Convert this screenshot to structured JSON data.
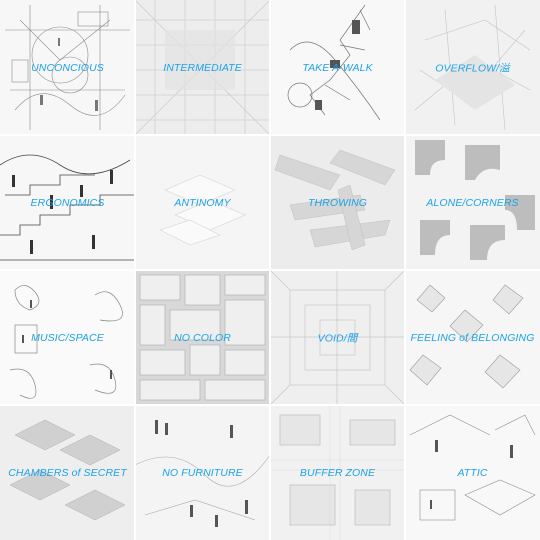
{
  "tiles": [
    {
      "label": "UNCONCIOUS"
    },
    {
      "label": "INTERMEDIATE"
    },
    {
      "label": "TAKE A-WALK"
    },
    {
      "label": "OVERFLOW/溢"
    },
    {
      "label": "ERGONOMICS"
    },
    {
      "label": "ANTINOMY"
    },
    {
      "label": "THROWING"
    },
    {
      "label": "ALONE/CORNERS"
    },
    {
      "label": "MUSIC/SPACE"
    },
    {
      "label": "NO COLOR"
    },
    {
      "label": "VOID/間"
    },
    {
      "label": "FEELING of BELONGING"
    },
    {
      "label": "CHAMBERS of SECRET"
    },
    {
      "label": "NO FURNITURE"
    },
    {
      "label": "BUFFER ZONE"
    },
    {
      "label": "ATTIC"
    }
  ],
  "colors": {
    "label": "#1aa3e8",
    "tile_bg": "#f3f3f3"
  }
}
